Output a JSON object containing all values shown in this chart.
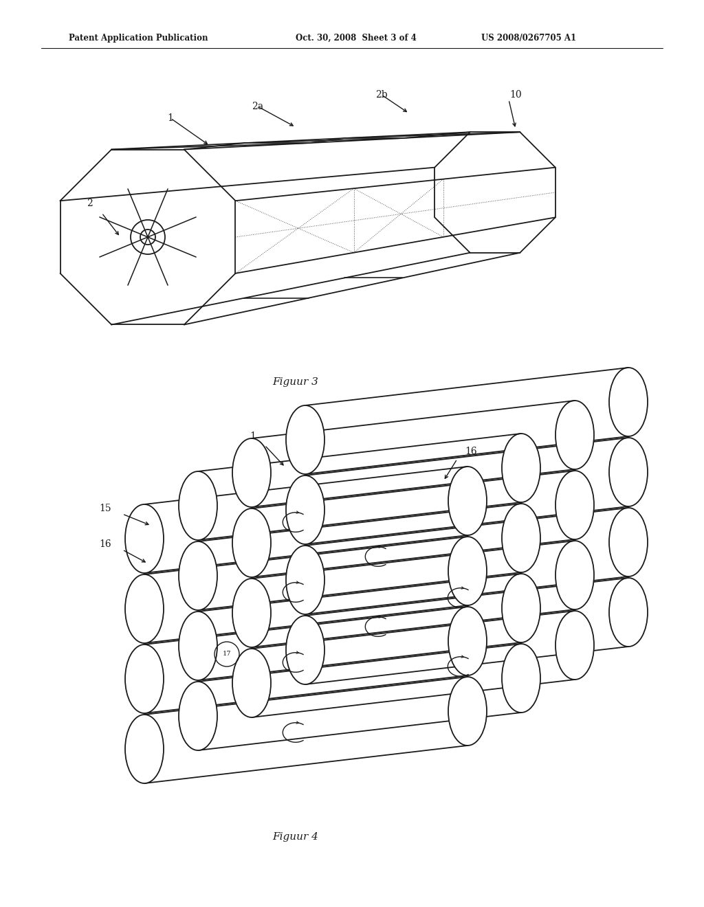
{
  "bg_color": "#ffffff",
  "line_color": "#1a1a1a",
  "header_text_left": "Patent Application Publication",
  "header_text_mid": "Oct. 30, 2008  Sheet 3 of 4",
  "header_text_right": "US 2008/0267705 A1",
  "fig3_caption": "Figuur 3",
  "fig4_caption": "Figuur 4",
  "lw": 1.3
}
